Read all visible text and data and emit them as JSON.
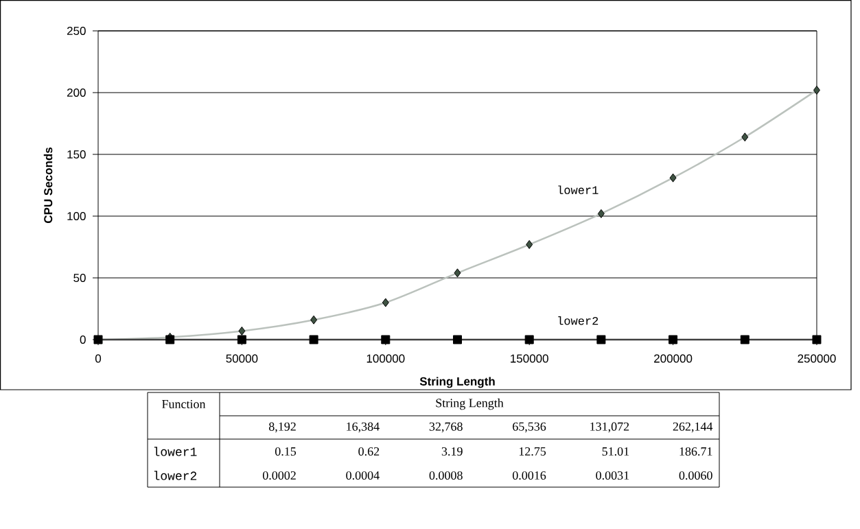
{
  "chart_data": [
    {
      "type": "line",
      "xlabel": "String Length",
      "ylabel": "CPU Seconds",
      "x": [
        0,
        25000,
        50000,
        75000,
        100000,
        125000,
        150000,
        175000,
        200000,
        225000,
        250000
      ],
      "series": [
        {
          "name": "lower1",
          "color": "#3e5242",
          "marker": "diamond",
          "values": [
            0,
            2,
            7,
            16,
            30,
            54,
            77,
            102,
            131,
            164,
            202
          ]
        },
        {
          "name": "lower2",
          "color": "#000000",
          "marker": "square",
          "values": [
            0,
            0,
            0,
            0,
            0,
            0,
            0,
            0,
            0,
            0,
            0
          ]
        }
      ],
      "xlim": [
        0,
        250000
      ],
      "xticks": [
        0,
        50000,
        100000,
        150000,
        200000,
        250000
      ],
      "ylim": [
        0,
        250
      ],
      "yticks": [
        0,
        50,
        100,
        150,
        200,
        250
      ],
      "grid": "y"
    },
    {
      "type": "other",
      "title": "String Length",
      "annotations": [
        "Function"
      ],
      "categories": [
        "8,192",
        "16,384",
        "32,768",
        "65,536",
        "131,072",
        "262,144"
      ],
      "series": [
        {
          "name": "lower1",
          "values": [
            0.15,
            0.62,
            3.19,
            12.75,
            51.01,
            186.71
          ],
          "value_labels": [
            "0.15",
            "0.62",
            "3.19",
            "12.75",
            "51.01",
            "186.71"
          ]
        },
        {
          "name": "lower2",
          "values": [
            0.0002,
            0.0004,
            0.0008,
            0.0016,
            0.0031,
            0.006
          ],
          "value_labels": [
            "0.0002",
            "0.0004",
            "0.0008",
            "0.0016",
            "0.0031",
            "0.0060"
          ]
        }
      ]
    }
  ]
}
